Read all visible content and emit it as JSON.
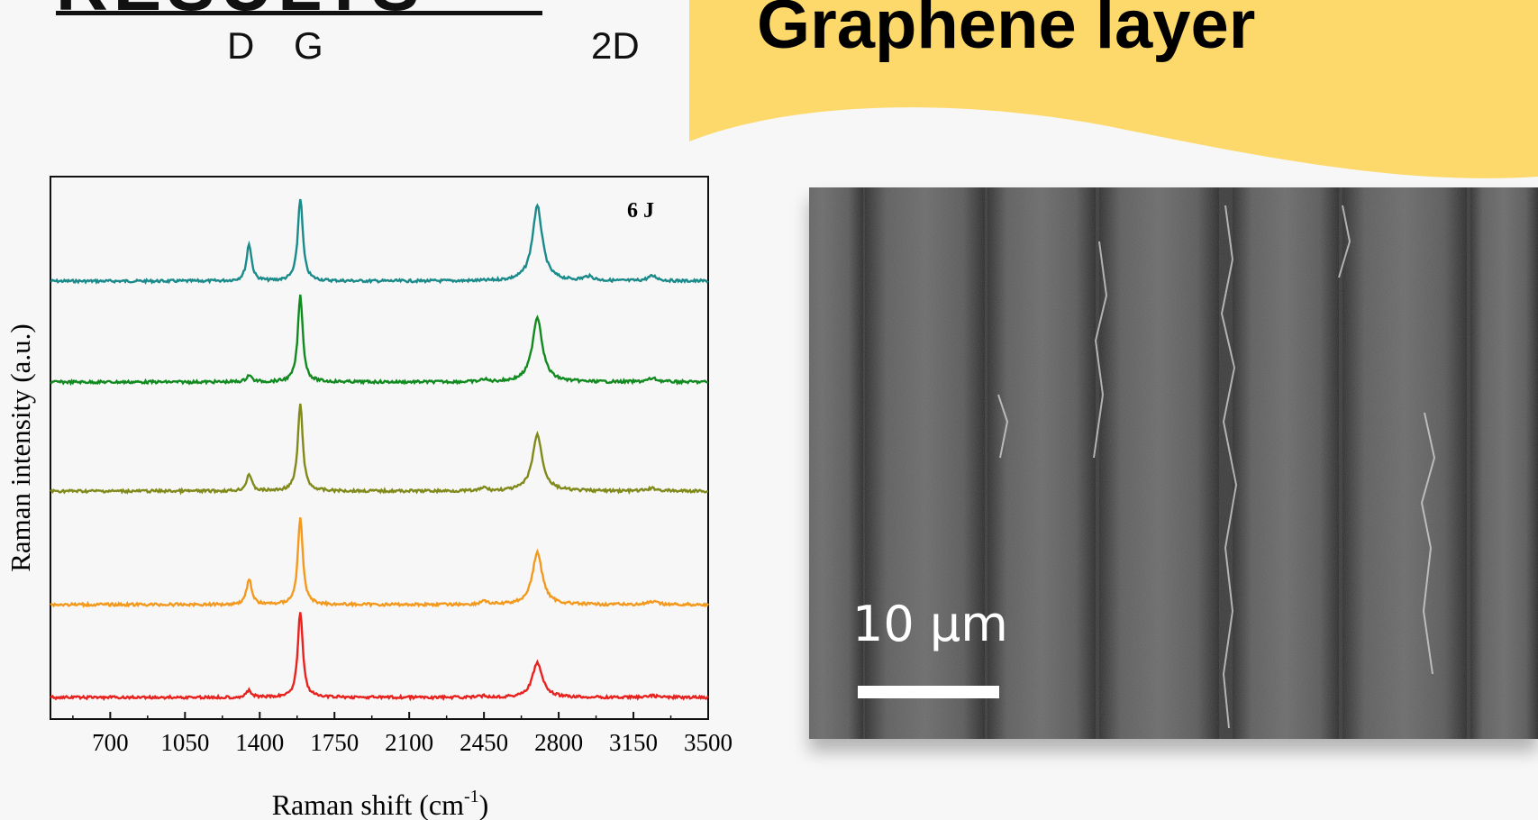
{
  "slide": {
    "heading_fragment": "RESULTS",
    "band_labels": [
      "D",
      "G",
      "2D"
    ],
    "banner": {
      "title": "Graphene layer",
      "color": "#fcd96a"
    }
  },
  "chart_data": {
    "type": "line",
    "xlabel": "Raman shift (cm-1)",
    "xlabel_main": "Raman shift (cm",
    "xlabel_sup": "-1",
    "xlabel_end": ")",
    "ylabel": "Raman intensity (a.u.)",
    "annotation": "6 J",
    "xlim": [
      420,
      3500
    ],
    "xticks": [
      700,
      1050,
      1400,
      1750,
      2100,
      2450,
      2800,
      3150,
      3500
    ],
    "series": [
      {
        "color": "#1a8a8a",
        "peaks": [
          {
            "x": 1350,
            "h": 0.45
          },
          {
            "x": 1590,
            "h": 1.0
          },
          {
            "x": 2700,
            "h": 0.9
          },
          {
            "x": 2940,
            "h": 0.05
          },
          {
            "x": 3240,
            "h": 0.06
          }
        ]
      },
      {
        "color": "#118a1f",
        "peaks": [
          {
            "x": 1350,
            "h": 0.08
          },
          {
            "x": 1590,
            "h": 1.0
          },
          {
            "x": 2700,
            "h": 0.75
          },
          {
            "x": 2450,
            "h": 0.03
          },
          {
            "x": 3240,
            "h": 0.04
          }
        ]
      },
      {
        "color": "#808a1a",
        "peaks": [
          {
            "x": 1350,
            "h": 0.2
          },
          {
            "x": 1590,
            "h": 1.0
          },
          {
            "x": 2700,
            "h": 0.65
          },
          {
            "x": 2450,
            "h": 0.04
          },
          {
            "x": 3240,
            "h": 0.03
          }
        ]
      },
      {
        "color": "#f39a1e",
        "peaks": [
          {
            "x": 1350,
            "h": 0.3
          },
          {
            "x": 1590,
            "h": 1.0
          },
          {
            "x": 2700,
            "h": 0.6
          },
          {
            "x": 2450,
            "h": 0.05
          },
          {
            "x": 3240,
            "h": 0.03
          }
        ]
      },
      {
        "color": "#e8221e",
        "peaks": [
          {
            "x": 1350,
            "h": 0.08
          },
          {
            "x": 1590,
            "h": 1.0
          },
          {
            "x": 2700,
            "h": 0.4
          },
          {
            "x": 2450,
            "h": 0.02
          },
          {
            "x": 3240,
            "h": 0.02
          }
        ]
      }
    ]
  },
  "micrograph": {
    "scale_label": "10 μm"
  }
}
